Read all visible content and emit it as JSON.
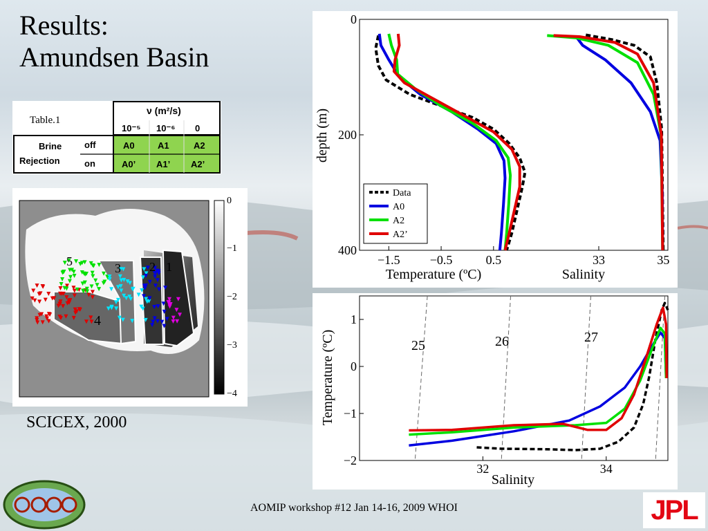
{
  "slide": {
    "title_line1": "Results:",
    "title_line2": "Amundsen Basin",
    "caption": "SCICEX, 2000",
    "footer": "AOMIP workshop #12 Jan 14-16, 2009 WHOI",
    "right_logo_text": "JPL",
    "left_logo_text": "ECCO"
  },
  "table": {
    "title": "Table.1",
    "header_nu": "ν (m²/s)",
    "cols": [
      "10⁻⁵",
      "10⁻⁶",
      "0"
    ],
    "row_group": [
      "Brine",
      "Rejection"
    ],
    "rows": [
      {
        "label": "off",
        "cells": [
          "A0",
          "A1",
          "A2"
        ]
      },
      {
        "label": "on",
        "cells": [
          "A0’",
          "A1’",
          "A2’"
        ]
      }
    ],
    "cell_color": "#8fd44f"
  },
  "map": {
    "region_labels": [
      "5",
      "3",
      "2",
      "1",
      "4"
    ],
    "colorbar_ticks": [
      "0",
      "−1",
      "−2",
      "−3",
      "−4"
    ],
    "colors": {
      "region5": "#00e000",
      "region4": "#e00000",
      "region3": "#00e5ff",
      "region2": "#0000e0",
      "region1": "#e000e0"
    }
  },
  "chart_data": [
    {
      "type": "line",
      "title": "",
      "ylabel": "depth (m)",
      "y_ticks": [
        "0",
        "200",
        "400"
      ],
      "ylim": [
        0,
        400
      ],
      "panels": [
        {
          "xlabel": "Temperature (ºC)",
          "xlim": [
            -1.9,
            1.4
          ],
          "x_ticks": [
            "−1.5",
            "−0.5",
            "0.5"
          ],
          "x_tick_values": [
            -1.5,
            -0.5,
            0.5
          ],
          "series": [
            {
              "name": "Data",
              "color": "#000000",
              "style": "dashed",
              "points": [
                [
                  -1.7,
                  28
                ],
                [
                  -1.75,
                  50
                ],
                [
                  -1.7,
                  80
                ],
                [
                  -1.55,
                  105
                ],
                [
                  -1.1,
                  130
                ],
                [
                  -0.5,
                  150
                ],
                [
                  0.1,
                  170
                ],
                [
                  0.5,
                  190
                ],
                [
                  0.8,
                  215
                ],
                [
                  1.0,
                  240
                ],
                [
                  1.1,
                  265
                ],
                [
                  1.05,
                  290
                ],
                [
                  0.95,
                  330
                ],
                [
                  0.85,
                  370
                ],
                [
                  0.75,
                  400
                ]
              ]
            },
            {
              "name": "A0",
              "color": "#0000e0",
              "style": "solid",
              "points": [
                [
                  -1.68,
                  25
                ],
                [
                  -1.65,
                  45
                ],
                [
                  -1.5,
                  70
                ],
                [
                  -1.3,
                  100
                ],
                [
                  -0.9,
                  130
                ],
                [
                  -0.3,
                  160
                ],
                [
                  0.2,
                  190
                ],
                [
                  0.55,
                  215
                ],
                [
                  0.7,
                  245
                ],
                [
                  0.72,
                  275
                ],
                [
                  0.69,
                  320
                ],
                [
                  0.65,
                  370
                ],
                [
                  0.62,
                  400
                ]
              ]
            },
            {
              "name": "A2",
              "color": "#00e000",
              "style": "solid",
              "points": [
                [
                  -1.5,
                  25
                ],
                [
                  -1.45,
                  45
                ],
                [
                  -1.35,
                  70
                ],
                [
                  -1.33,
                  95
                ],
                [
                  -1.0,
                  120
                ],
                [
                  -0.5,
                  150
                ],
                [
                  0.1,
                  180
                ],
                [
                  0.55,
                  210
                ],
                [
                  0.78,
                  240
                ],
                [
                  0.82,
                  270
                ],
                [
                  0.79,
                  320
                ],
                [
                  0.75,
                  370
                ],
                [
                  0.72,
                  400
                ]
              ]
            },
            {
              "name": "A2’",
              "color": "#e00000",
              "style": "solid",
              "points": [
                [
                  -1.32,
                  25
                ],
                [
                  -1.3,
                  45
                ],
                [
                  -1.38,
                  70
                ],
                [
                  -1.4,
                  90
                ],
                [
                  -1.2,
                  110
                ],
                [
                  -0.7,
                  135
                ],
                [
                  -0.1,
                  165
                ],
                [
                  0.5,
                  195
                ],
                [
                  0.85,
                  225
                ],
                [
                  1.0,
                  255
                ],
                [
                  1.0,
                  290
                ],
                [
                  0.9,
                  330
                ],
                [
                  0.8,
                  370
                ],
                [
                  0.72,
                  400
                ]
              ]
            }
          ]
        },
        {
          "xlabel": "Salinity",
          "xlim": [
            31.2,
            35.1
          ],
          "x_ticks": [
            "33",
            "35"
          ],
          "x_tick_values": [
            33,
            35
          ],
          "series": [
            {
              "name": "Data",
              "color": "#000000",
              "style": "dashed",
              "points": [
                [
                  32.6,
                  27
                ],
                [
                  33.4,
                  35
                ],
                [
                  34.1,
                  45
                ],
                [
                  34.6,
                  65
                ],
                [
                  34.8,
                  110
                ],
                [
                  34.95,
                  190
                ],
                [
                  35.0,
                  400
                ]
              ]
            },
            {
              "name": "A0",
              "color": "#0000e0",
              "style": "solid",
              "points": [
                [
                  32.3,
                  30
                ],
                [
                  32.5,
                  45
                ],
                [
                  33.2,
                  70
                ],
                [
                  34.0,
                  110
                ],
                [
                  34.6,
                  160
                ],
                [
                  34.9,
                  210
                ],
                [
                  34.97,
                  300
                ],
                [
                  34.98,
                  400
                ]
              ]
            },
            {
              "name": "A2",
              "color": "#00e000",
              "style": "solid",
              "points": [
                [
                  31.4,
                  28
                ],
                [
                  32.3,
                  32
                ],
                [
                  33.3,
                  45
                ],
                [
                  34.2,
                  75
                ],
                [
                  34.7,
                  130
                ],
                [
                  34.93,
                  200
                ],
                [
                  34.98,
                  400
                ]
              ]
            },
            {
              "name": "A2’",
              "color": "#e00000",
              "style": "solid",
              "points": [
                [
                  31.6,
                  28
                ],
                [
                  32.4,
                  30
                ],
                [
                  33.5,
                  40
                ],
                [
                  34.2,
                  60
                ],
                [
                  34.7,
                  110
                ],
                [
                  34.94,
                  200
                ],
                [
                  34.98,
                  400
                ]
              ]
            }
          ]
        }
      ],
      "legend": [
        "Data",
        "A0",
        "A2",
        "A2’"
      ],
      "legend_position": "lower-left"
    },
    {
      "type": "line",
      "title": "",
      "xlabel": "Salinity",
      "ylabel": "Temperature (ºC)",
      "xlim": [
        30.0,
        35.0
      ],
      "ylim": [
        -2.0,
        1.5
      ],
      "x_ticks": [
        "32",
        "34"
      ],
      "x_tick_values": [
        32,
        34
      ],
      "y_ticks": [
        "−2",
        "−1",
        "0",
        "1"
      ],
      "y_tick_values": [
        -2,
        -1,
        0,
        1
      ],
      "isopycnal_labels": [
        "25",
        "26",
        "27"
      ],
      "series": [
        {
          "name": "Data",
          "color": "#000000",
          "style": "dashed",
          "points": [
            [
              31.9,
              -1.72
            ],
            [
              32.3,
              -1.75
            ],
            [
              33.0,
              -1.76
            ],
            [
              33.5,
              -1.78
            ],
            [
              33.9,
              -1.75
            ],
            [
              34.2,
              -1.6
            ],
            [
              34.45,
              -1.3
            ],
            [
              34.6,
              -0.8
            ],
            [
              34.7,
              -0.2
            ],
            [
              34.8,
              0.6
            ],
            [
              34.9,
              1.2
            ],
            [
              34.95,
              1.35
            ],
            [
              35.0,
              1.2
            ]
          ]
        },
        {
          "name": "A0",
          "color": "#0000e0",
          "style": "solid",
          "points": [
            [
              30.8,
              -1.68
            ],
            [
              31.5,
              -1.58
            ],
            [
              32.5,
              -1.38
            ],
            [
              33.4,
              -1.15
            ],
            [
              33.9,
              -0.85
            ],
            [
              34.3,
              -0.45
            ],
            [
              34.55,
              0.0
            ],
            [
              34.75,
              0.45
            ],
            [
              34.88,
              0.72
            ],
            [
              34.95,
              0.6
            ],
            [
              34.97,
              -0.2
            ]
          ]
        },
        {
          "name": "A2",
          "color": "#00e000",
          "style": "solid",
          "points": [
            [
              30.8,
              -1.45
            ],
            [
              31.5,
              -1.4
            ],
            [
              32.5,
              -1.3
            ],
            [
              33.5,
              -1.25
            ],
            [
              34.0,
              -1.2
            ],
            [
              34.3,
              -0.9
            ],
            [
              34.55,
              -0.3
            ],
            [
              34.75,
              0.4
            ],
            [
              34.88,
              0.82
            ],
            [
              34.95,
              0.7
            ],
            [
              34.97,
              -0.25
            ]
          ]
        },
        {
          "name": "A2’",
          "color": "#e00000",
          "style": "solid",
          "points": [
            [
              30.8,
              -1.36
            ],
            [
              31.5,
              -1.35
            ],
            [
              32.5,
              -1.25
            ],
            [
              33.3,
              -1.22
            ],
            [
              33.7,
              -1.35
            ],
            [
              34.0,
              -1.35
            ],
            [
              34.25,
              -1.1
            ],
            [
              34.45,
              -0.6
            ],
            [
              34.65,
              0.2
            ],
            [
              34.82,
              0.9
            ],
            [
              34.92,
              1.25
            ],
            [
              34.97,
              0.9
            ],
            [
              34.98,
              -0.25
            ]
          ]
        }
      ]
    }
  ]
}
